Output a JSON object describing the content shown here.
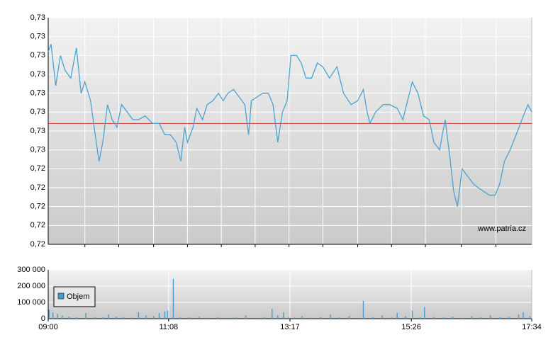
{
  "watermark": "www.patria.cz",
  "chart_data": [
    {
      "type": "line",
      "xlim": [
        0,
        514
      ],
      "xgrid": [
        39,
        75,
        112,
        148,
        184,
        220,
        256,
        292,
        329,
        365,
        401,
        439,
        476
      ],
      "ylim": [
        0.7225,
        0.7285
      ],
      "yticks": [
        {
          "value": 0.7225,
          "label": "0,72"
        },
        {
          "value": 0.723,
          "label": "0,72"
        },
        {
          "value": 0.7235,
          "label": "0,72"
        },
        {
          "value": 0.724,
          "label": "0,72"
        },
        {
          "value": 0.7245,
          "label": "0,72"
        },
        {
          "value": 0.725,
          "label": "0,73"
        },
        {
          "value": 0.7255,
          "label": "0,73"
        },
        {
          "value": 0.726,
          "label": "0,73"
        },
        {
          "value": 0.7265,
          "label": "0,73"
        },
        {
          "value": 0.727,
          "label": "0,73"
        },
        {
          "value": 0.7275,
          "label": "0,73"
        },
        {
          "value": 0.728,
          "label": "0,73"
        },
        {
          "value": 0.7285,
          "label": "0,73"
        }
      ],
      "grid": true,
      "ref_line": {
        "value": 0.7257,
        "color": "#d03030"
      },
      "x": [
        0,
        3,
        8,
        13,
        18,
        24,
        30,
        35,
        39,
        45,
        50,
        54,
        58,
        63,
        68,
        73,
        78,
        84,
        90,
        96,
        103,
        111,
        118,
        124,
        130,
        136,
        141,
        145,
        148,
        154,
        158,
        164,
        169,
        175,
        181,
        186,
        191,
        197,
        203,
        209,
        213,
        216,
        222,
        228,
        234,
        239,
        244,
        249,
        254,
        258,
        264,
        269,
        274,
        280,
        286,
        292,
        299,
        307,
        314,
        322,
        329,
        335,
        339,
        342,
        348,
        356,
        363,
        371,
        377,
        382,
        387,
        393,
        399,
        405,
        410,
        416,
        422,
        427,
        431,
        435,
        440,
        446,
        452,
        457,
        463,
        469,
        475,
        480,
        485,
        491,
        499,
        505,
        510,
        514
      ],
      "series": [
        {
          "color": "#4aa3d0",
          "values": [
            0.7276,
            0.7278,
            0.7267,
            0.7275,
            0.7271,
            0.7269,
            0.7277,
            0.7265,
            0.7268,
            0.7263,
            0.7254,
            0.7247,
            0.7252,
            0.7262,
            0.7258,
            0.7256,
            0.7262,
            0.726,
            0.7258,
            0.7258,
            0.7259,
            0.7257,
            0.7257,
            0.7254,
            0.7254,
            0.7252,
            0.7247,
            0.7256,
            0.7252,
            0.7256,
            0.7261,
            0.7258,
            0.7262,
            0.7263,
            0.7265,
            0.7263,
            0.7265,
            0.7266,
            0.7264,
            0.7262,
            0.7254,
            0.7263,
            0.7264,
            0.7265,
            0.7265,
            0.7262,
            0.7252,
            0.726,
            0.7263,
            0.7275,
            0.7275,
            0.7273,
            0.7269,
            0.7269,
            0.7273,
            0.7272,
            0.7269,
            0.7272,
            0.7265,
            0.7262,
            0.7263,
            0.7266,
            0.726,
            0.7257,
            0.726,
            0.7262,
            0.7262,
            0.7261,
            0.7258,
            0.7263,
            0.7268,
            0.7265,
            0.7259,
            0.7258,
            0.7252,
            0.725,
            0.7258,
            0.7248,
            0.7239,
            0.7235,
            0.7245,
            0.7243,
            0.7241,
            0.724,
            0.7239,
            0.7238,
            0.7238,
            0.7241,
            0.7247,
            0.725,
            0.7255,
            0.7259,
            0.7262,
            0.726
          ]
        }
      ]
    },
    {
      "type": "bar",
      "xlim": [
        0,
        514
      ],
      "xticks": [
        {
          "value": 0,
          "label": "09:00"
        },
        {
          "value": 128,
          "label": "11:08"
        },
        {
          "value": 257,
          "label": "13:17"
        },
        {
          "value": 386,
          "label": "15:26"
        },
        {
          "value": 514,
          "label": "17:34"
        }
      ],
      "ylim": [
        0,
        300000
      ],
      "yticks": [
        0,
        {
          "value": 100000,
          "label": "100 000"
        },
        {
          "value": 200000,
          "label": "200 000"
        },
        {
          "value": 300000,
          "label": "300 000"
        }
      ],
      "grid": true,
      "x": [
        1,
        5,
        10,
        15,
        22,
        30,
        40,
        50,
        58,
        64,
        72,
        80,
        88,
        96,
        104,
        112,
        118,
        124,
        127,
        133,
        140,
        150,
        160,
        170,
        180,
        190,
        200,
        210,
        220,
        230,
        238,
        244,
        250,
        256,
        262,
        270,
        280,
        290,
        300,
        310,
        320,
        335,
        345,
        355,
        365,
        371,
        380,
        387,
        395,
        400,
        410,
        420,
        430,
        440,
        450,
        460,
        470,
        480,
        490,
        500,
        505,
        512
      ],
      "series": [
        {
          "name": "Objem",
          "color": "#4a9fd0",
          "values": [
            55000,
            40000,
            30000,
            20000,
            12000,
            8000,
            35000,
            10000,
            8000,
            25000,
            12000,
            10000,
            6000,
            40000,
            20000,
            15000,
            35000,
            45000,
            50000,
            245000,
            10000,
            8000,
            12000,
            6000,
            10000,
            5000,
            8000,
            20000,
            6000,
            10000,
            60000,
            20000,
            40000,
            10000,
            8000,
            15000,
            6000,
            10000,
            25000,
            8000,
            15000,
            110000,
            10000,
            20000,
            8000,
            35000,
            15000,
            50000,
            8000,
            70000,
            10000,
            8000,
            12000,
            6000,
            15000,
            10000,
            20000,
            8000,
            12000,
            25000,
            40000,
            15000
          ]
        }
      ]
    }
  ]
}
